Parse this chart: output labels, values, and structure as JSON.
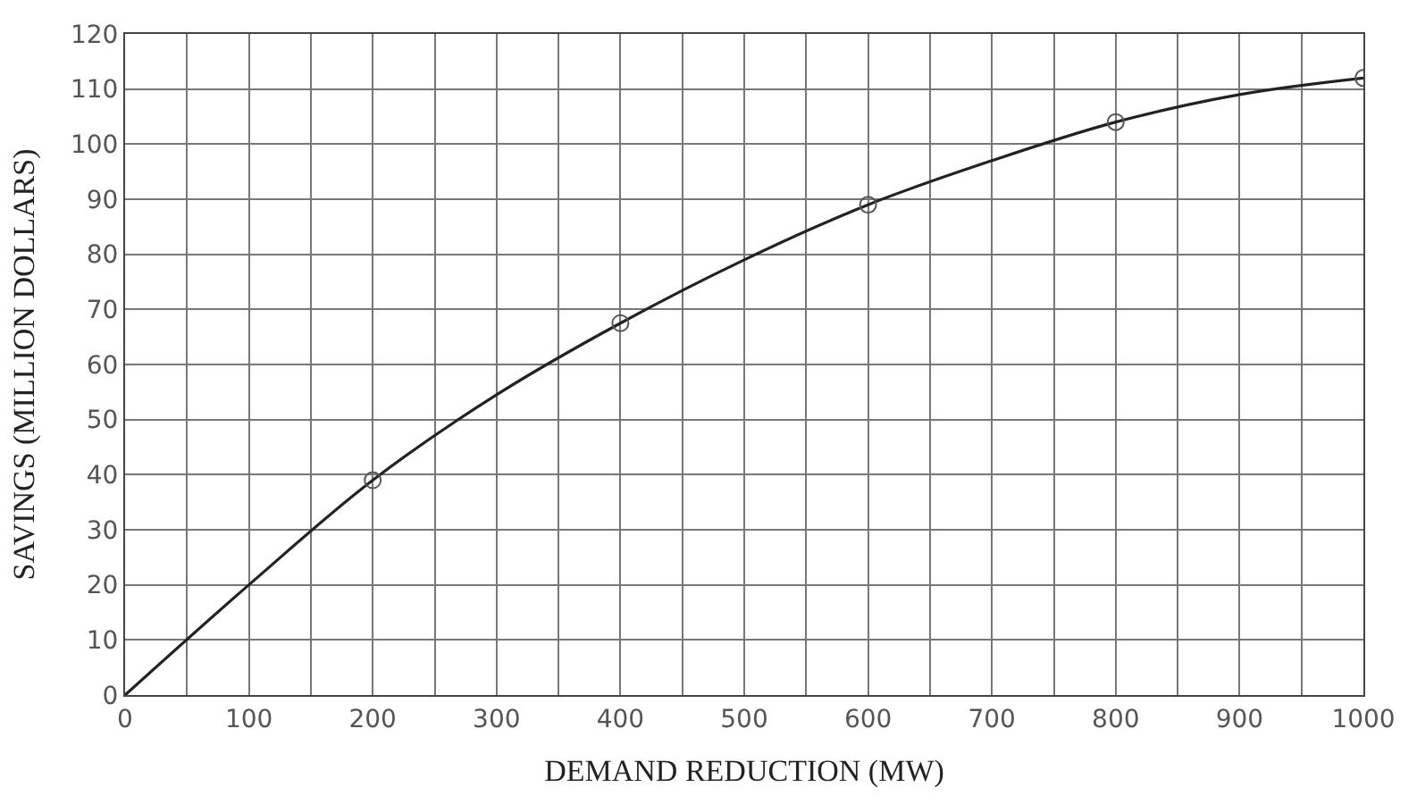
{
  "chart_data": {
    "type": "line",
    "xlabel": "DEMAND REDUCTION (MW)",
    "ylabel": "SAVINGS (MILLION DOLLARS)",
    "series": [
      {
        "color": "#222222",
        "marker": "none",
        "x": [
          0,
          100,
          200,
          300,
          400,
          500,
          600,
          700,
          800,
          900,
          1000
        ],
        "values": [
          0,
          20,
          39,
          54.5,
          67.5,
          79,
          89,
          97,
          104,
          109,
          112
        ]
      },
      {
        "type": "scatter",
        "color": "#555555",
        "marker": "circle",
        "x": [
          200,
          400,
          600,
          800,
          1000
        ],
        "values": [
          39,
          67.5,
          89,
          104,
          112
        ]
      }
    ],
    "xlim": [
      0,
      1000
    ],
    "ylim": [
      0,
      120
    ],
    "xticks": [
      0,
      {
        "value": 50,
        "label": null
      },
      100,
      {
        "value": 150,
        "label": null
      },
      200,
      {
        "value": 250,
        "label": null
      },
      300,
      {
        "value": 350,
        "label": null
      },
      400,
      {
        "value": 450,
        "label": null
      },
      500,
      {
        "value": 550,
        "label": null
      },
      600,
      {
        "value": 650,
        "label": null
      },
      700,
      {
        "value": 750,
        "label": null
      },
      800,
      {
        "value": 850,
        "label": null
      },
      900,
      {
        "value": 950,
        "label": null
      },
      1000
    ],
    "yticks": [
      0,
      10,
      20,
      30,
      40,
      50,
      60,
      70,
      80,
      90,
      100,
      110,
      120
    ],
    "grid": true
  }
}
